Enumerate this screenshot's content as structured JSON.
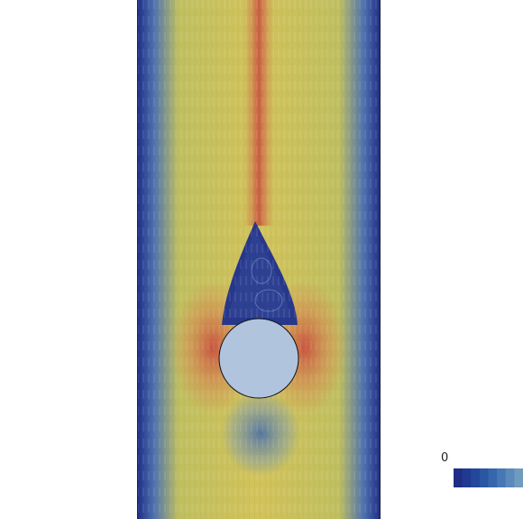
{
  "colorbar": {
    "min_label": "0",
    "colors": [
      "#1f2d86",
      "#203a91",
      "#23479b",
      "#2a56a4",
      "#3666ac",
      "#4777b4",
      "#5b89bb",
      "#6f9bbf"
    ]
  },
  "palette": {
    "deep_blue": "#1f2d86",
    "mid_blue": "#4f72b0",
    "yellow": "#cfc55a",
    "orange": "#d9925a",
    "red": "#cc5a48",
    "cylinder": "#b0c4de"
  }
}
